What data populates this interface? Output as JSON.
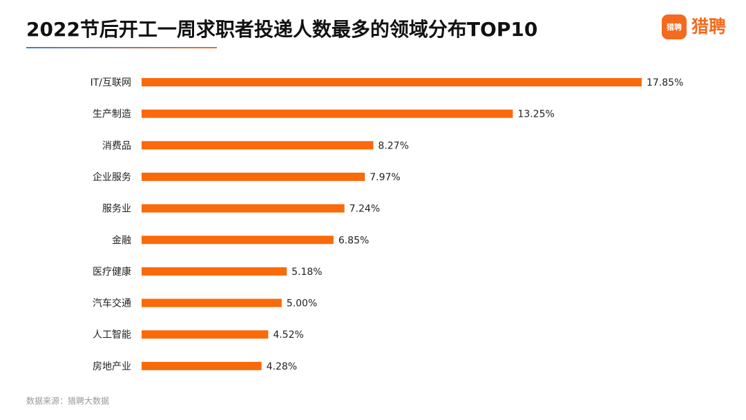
{
  "chart_data": {
    "type": "bar",
    "orientation": "horizontal",
    "title": "2022节后开工一周求职者投递人数最多的领域分布TOP10",
    "logo": "猎聘",
    "source": "数据来源：猎聘大数据",
    "categories": [
      "IT/互联网",
      "生产制造",
      "消费品",
      "企业服务",
      "服务业",
      "金融",
      "医疗健康",
      "汽车交通",
      "人工智能",
      "房地产业"
    ],
    "values": [
      17.85,
      13.25,
      8.27,
      7.97,
      7.24,
      6.85,
      5.18,
      5.0,
      4.52,
      4.28
    ],
    "value_labels": [
      "17.85%",
      "13.25%",
      "8.27%",
      "7.97%",
      "7.24%",
      "6.85%",
      "5.18%",
      "5.00%",
      "4.52%",
      "4.28%"
    ],
    "color": "#fa6a0a"
  }
}
